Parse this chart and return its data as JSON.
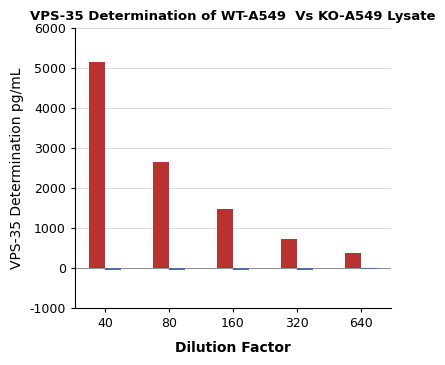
{
  "title": "VPS-35 Determination of WT-A549  Vs KO-A549 Lysate",
  "xlabel": "Dilution Factor",
  "ylabel": "VPS-35 Determination pg/mL",
  "categories": [
    40,
    80,
    160,
    320,
    640
  ],
  "wt_values": [
    5150,
    2650,
    1480,
    710,
    370
  ],
  "ko_values": [
    -55,
    -65,
    -50,
    -50,
    -25
  ],
  "wt_color": "#b83232",
  "ko_color": "#4f6fa0",
  "ylim": [
    -1000,
    6000
  ],
  "yticks": [
    -1000,
    0,
    1000,
    2000,
    3000,
    4000,
    5000,
    6000
  ],
  "bar_width": 0.25,
  "background_color": "#ffffff",
  "title_fontsize": 9.5,
  "axis_label_fontsize": 10,
  "tick_fontsize": 9
}
